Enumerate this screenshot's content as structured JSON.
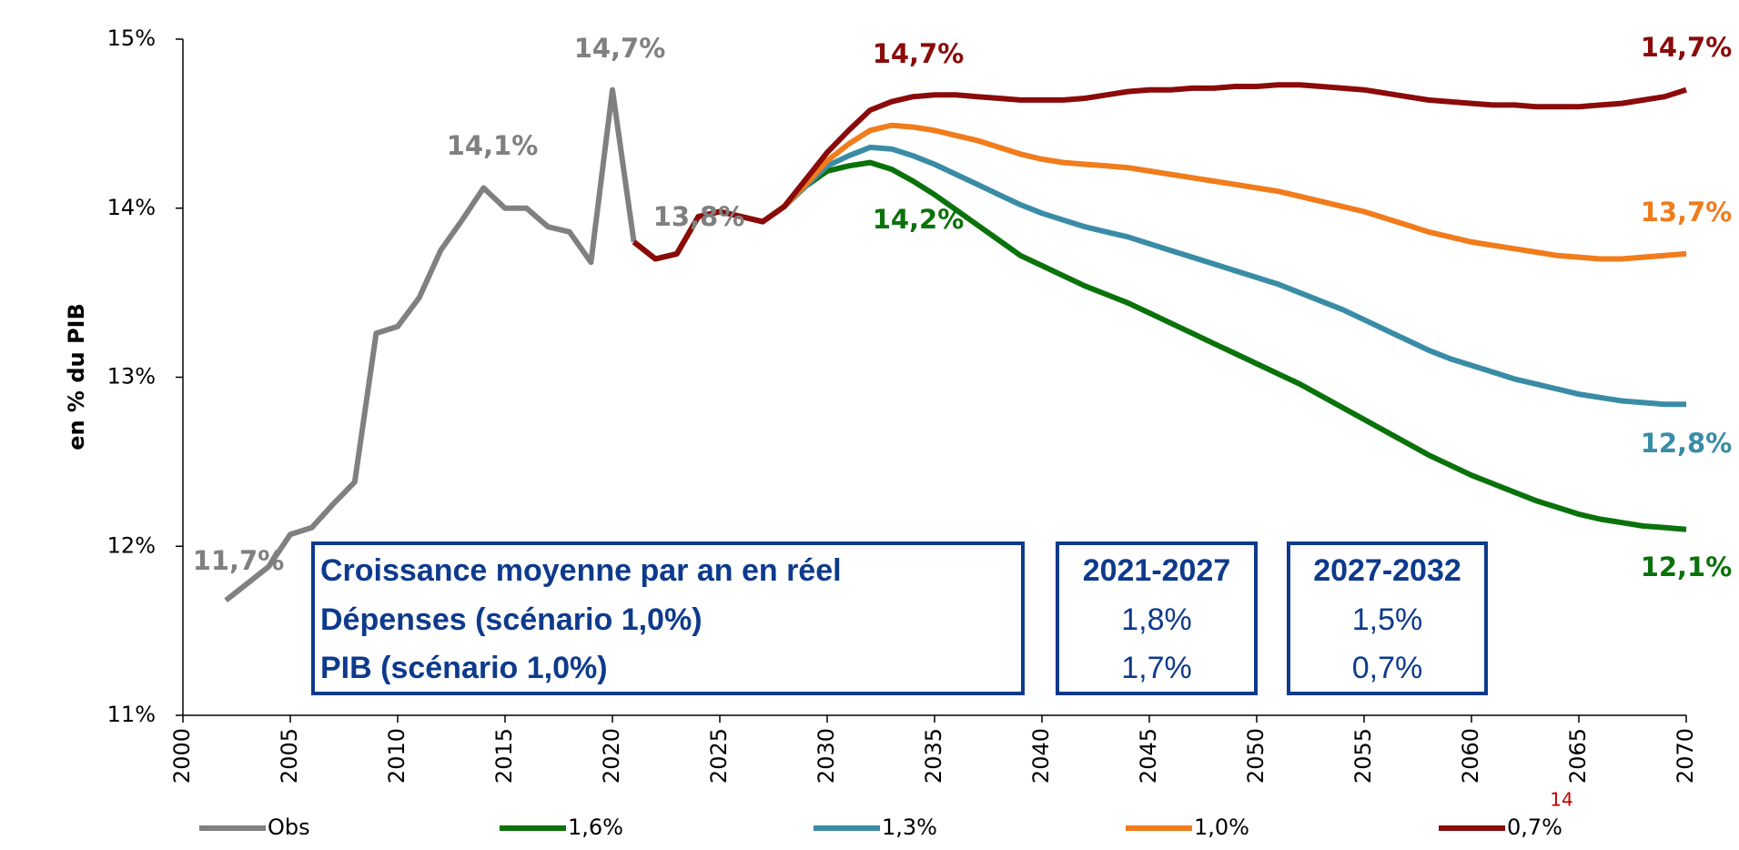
{
  "chart_data": {
    "type": "line",
    "y_label": "en % du PIB",
    "page_number": "14",
    "x": [
      2002,
      2003,
      2004,
      2005,
      2006,
      2007,
      2008,
      2009,
      2010,
      2011,
      2012,
      2013,
      2014,
      2015,
      2016,
      2017,
      2018,
      2019,
      2020,
      2021,
      2022,
      2023,
      2024,
      2025,
      2026,
      2027,
      2028,
      2029,
      2030,
      2031,
      2032,
      2033,
      2034,
      2035,
      2036,
      2037,
      2038,
      2039,
      2040,
      2041,
      2042,
      2043,
      2044,
      2045,
      2046,
      2047,
      2048,
      2049,
      2050,
      2051,
      2052,
      2053,
      2054,
      2055,
      2056,
      2057,
      2058,
      2059,
      2060,
      2061,
      2062,
      2063,
      2064,
      2065,
      2066,
      2067,
      2068,
      2069,
      2070
    ],
    "xlim": [
      2000,
      2070
    ],
    "xticks": [
      2000,
      2005,
      2010,
      2015,
      2020,
      2025,
      2030,
      2035,
      2040,
      2045,
      2050,
      2055,
      2060,
      2065,
      2070
    ],
    "ylim": [
      11,
      15
    ],
    "yticks": [
      {
        "value": 11,
        "label": "11%"
      },
      {
        "value": 12,
        "label": "12%"
      },
      {
        "value": 13,
        "label": "13%"
      },
      {
        "value": 14,
        "label": "14%"
      },
      {
        "value": 15,
        "label": "15%"
      }
    ],
    "series": [
      {
        "name": "Obs",
        "color": "#808080",
        "values": [
          11.68,
          11.78,
          11.88,
          12.07,
          12.11,
          12.25,
          12.38,
          13.26,
          13.3,
          13.47,
          13.75,
          13.93,
          14.12,
          14.0,
          14.0,
          13.89,
          13.86,
          13.68,
          14.7,
          13.8,
          null,
          null,
          null,
          null,
          null,
          null,
          null,
          null,
          null,
          null,
          null,
          null,
          null,
          null,
          null,
          null,
          null,
          null,
          null,
          null,
          null,
          null,
          null,
          null,
          null,
          null,
          null,
          null,
          null,
          null,
          null,
          null,
          null,
          null,
          null,
          null,
          null,
          null,
          null,
          null,
          null,
          null,
          null,
          null,
          null,
          null,
          null,
          null,
          null
        ]
      },
      {
        "name": "1,6%",
        "color": "#0a720a",
        "values": [
          null,
          null,
          null,
          null,
          null,
          null,
          null,
          null,
          null,
          null,
          null,
          null,
          null,
          null,
          null,
          null,
          null,
          null,
          null,
          13.8,
          13.7,
          13.73,
          13.95,
          13.98,
          13.95,
          13.92,
          14.01,
          14.13,
          14.22,
          14.25,
          14.27,
          14.23,
          14.16,
          14.08,
          13.99,
          13.9,
          13.81,
          13.72,
          13.66,
          13.6,
          13.54,
          13.49,
          13.44,
          13.38,
          13.32,
          13.26,
          13.2,
          13.14,
          13.08,
          13.02,
          12.96,
          12.89,
          12.82,
          12.75,
          12.68,
          12.61,
          12.54,
          12.48,
          12.42,
          12.37,
          12.32,
          12.27,
          12.23,
          12.19,
          12.16,
          12.14,
          12.12,
          12.11,
          12.1
        ]
      },
      {
        "name": "1,3%",
        "color": "#3a8ca6",
        "values": [
          null,
          null,
          null,
          null,
          null,
          null,
          null,
          null,
          null,
          null,
          null,
          null,
          null,
          null,
          null,
          null,
          null,
          null,
          null,
          13.8,
          13.7,
          13.73,
          13.95,
          13.98,
          13.95,
          13.92,
          14.01,
          14.13,
          14.25,
          14.31,
          14.36,
          14.35,
          14.31,
          14.26,
          14.2,
          14.14,
          14.08,
          14.02,
          13.97,
          13.93,
          13.89,
          13.86,
          13.83,
          13.79,
          13.75,
          13.71,
          13.67,
          13.63,
          13.59,
          13.55,
          13.5,
          13.45,
          13.4,
          13.34,
          13.28,
          13.22,
          13.16,
          13.11,
          13.07,
          13.03,
          12.99,
          12.96,
          12.93,
          12.9,
          12.88,
          12.86,
          12.85,
          12.84,
          12.84
        ]
      },
      {
        "name": "1,0%",
        "color": "#f07c1c",
        "values": [
          null,
          null,
          null,
          null,
          null,
          null,
          null,
          null,
          null,
          null,
          null,
          null,
          null,
          null,
          null,
          null,
          null,
          null,
          null,
          13.8,
          13.7,
          13.73,
          13.95,
          13.98,
          13.95,
          13.92,
          14.01,
          14.14,
          14.28,
          14.38,
          14.46,
          14.49,
          14.48,
          14.46,
          14.43,
          14.4,
          14.36,
          14.32,
          14.29,
          14.27,
          14.26,
          14.25,
          14.24,
          14.22,
          14.2,
          14.18,
          14.16,
          14.14,
          14.12,
          14.1,
          14.07,
          14.04,
          14.01,
          13.98,
          13.94,
          13.9,
          13.86,
          13.83,
          13.8,
          13.78,
          13.76,
          13.74,
          13.72,
          13.71,
          13.7,
          13.7,
          13.71,
          13.72,
          13.73
        ]
      },
      {
        "name": "0,7%",
        "color": "#8b0a0a",
        "values": [
          null,
          null,
          null,
          null,
          null,
          null,
          null,
          null,
          null,
          null,
          null,
          null,
          null,
          null,
          null,
          null,
          null,
          null,
          null,
          13.8,
          13.7,
          13.73,
          13.95,
          13.98,
          13.95,
          13.92,
          14.01,
          14.17,
          14.33,
          14.46,
          14.58,
          14.63,
          14.66,
          14.67,
          14.67,
          14.66,
          14.65,
          14.64,
          14.64,
          14.64,
          14.65,
          14.67,
          14.69,
          14.7,
          14.7,
          14.71,
          14.71,
          14.72,
          14.72,
          14.73,
          14.73,
          14.72,
          14.71,
          14.7,
          14.68,
          14.66,
          14.64,
          14.63,
          14.62,
          14.61,
          14.61,
          14.6,
          14.6,
          14.6,
          14.61,
          14.62,
          14.64,
          14.66,
          14.7
        ]
      }
    ],
    "annotations": [
      {
        "label": "11,7%",
        "color": "#808080"
      },
      {
        "label": "14,1%",
        "color": "#808080"
      },
      {
        "label": "14,7%",
        "color": "#808080"
      },
      {
        "label": "13,8%",
        "color": "#808080"
      },
      {
        "label": "14,7%",
        "color": "#8b0a0a"
      },
      {
        "label": "14,2%",
        "color": "#0a720a"
      },
      {
        "label": "14,7%",
        "color": "#8b0a0a"
      },
      {
        "label": "13,7%",
        "color": "#f07c1c"
      },
      {
        "label": "12,8%",
        "color": "#3a8ca6"
      },
      {
        "label": "12,1%",
        "color": "#0a720a"
      }
    ],
    "table": {
      "rows": [
        [
          "Croissance moyenne par an en réel",
          "2021-2027",
          "2027-2032"
        ],
        [
          "Dépenses (scénario 1,0%)",
          "1,8%",
          "1,5%"
        ],
        [
          "PIB (scénario 1,0%)",
          "1,7%",
          "0,7%"
        ]
      ]
    }
  }
}
